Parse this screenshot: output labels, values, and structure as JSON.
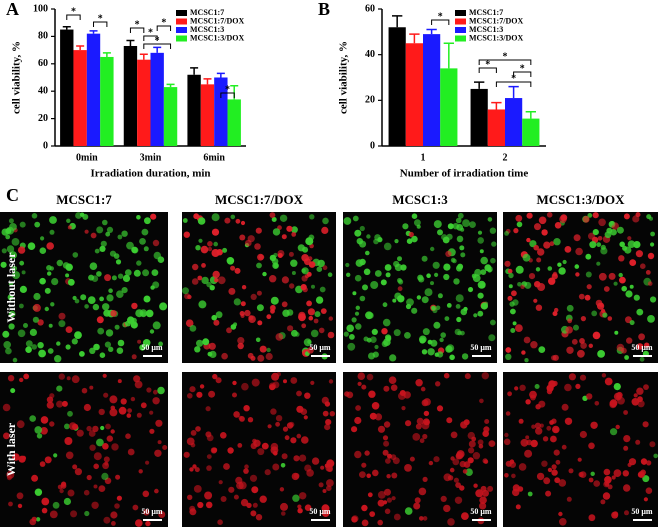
{
  "chart_data": [
    {
      "type": "bar",
      "panel_label": "A",
      "xlabel": "Irradiation duration, min",
      "ylabel": "cell viability, %",
      "categories": [
        "0min",
        "3min",
        "6min"
      ],
      "series": [
        {
          "name": "MCSC1:7",
          "color": "#000000",
          "values": [
            85,
            73,
            52
          ],
          "errors": [
            2,
            4,
            5
          ]
        },
        {
          "name": "MCSC1:7/DOX",
          "color": "#ff1a1a",
          "values": [
            70,
            63,
            45
          ],
          "errors": [
            3,
            4,
            4
          ]
        },
        {
          "name": "MCSC1:3",
          "color": "#1a1aff",
          "values": [
            82,
            68,
            50
          ],
          "errors": [
            2,
            4,
            3
          ]
        },
        {
          "name": "MCSC1:3/DOX",
          "color": "#22ee22",
          "values": [
            65,
            43,
            34
          ],
          "errors": [
            3,
            2,
            10
          ]
        }
      ],
      "ylim": [
        0,
        100
      ],
      "yticks": [
        0,
        20,
        40,
        60,
        80,
        100
      ],
      "legend": "top-right",
      "annotations": [
        "*",
        "*",
        "*",
        "*",
        "*",
        "*",
        "*"
      ]
    },
    {
      "type": "bar",
      "panel_label": "B",
      "xlabel": "Number of irradiation time",
      "ylabel": "cell viability, %",
      "categories": [
        "1",
        "2"
      ],
      "series": [
        {
          "name": "MCSC1:7",
          "color": "#000000",
          "values": [
            52,
            25
          ],
          "errors": [
            5,
            3
          ]
        },
        {
          "name": "MCSC1:7/DOX",
          "color": "#ff1a1a",
          "values": [
            45,
            16
          ],
          "errors": [
            4,
            3
          ]
        },
        {
          "name": "MCSC1:3",
          "color": "#1a1aff",
          "values": [
            49,
            21
          ],
          "errors": [
            2,
            5
          ]
        },
        {
          "name": "MCSC1:3/DOX",
          "color": "#22ee22",
          "values": [
            34,
            12
          ],
          "errors": [
            11,
            3
          ]
        }
      ],
      "ylim": [
        0,
        60
      ],
      "yticks": [
        0,
        20,
        40,
        60
      ],
      "legend": "top-right",
      "annotations": [
        "*",
        "*",
        "*",
        "*",
        "*"
      ]
    }
  ],
  "panel_c": {
    "label": "C",
    "columns": [
      "MCSC1:7",
      "MCSC1:7/DOX",
      "MCSC1:3",
      "MCSC1:3/DOX"
    ],
    "rows": [
      "Without laser",
      "With laser"
    ],
    "scale_bar": "50 μm"
  }
}
